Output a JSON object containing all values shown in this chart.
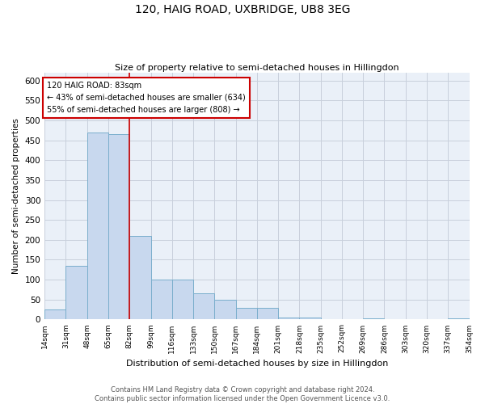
{
  "title": "120, HAIG ROAD, UXBRIDGE, UB8 3EG",
  "subtitle": "Size of property relative to semi-detached houses in Hillingdon",
  "xlabel": "Distribution of semi-detached houses by size in Hillingdon",
  "ylabel": "Number of semi-detached properties",
  "footnote1": "Contains HM Land Registry data © Crown copyright and database right 2024.",
  "footnote2": "Contains public sector information licensed under the Open Government Licence v3.0.",
  "property_label": "120 HAIG ROAD: 83sqm",
  "smaller_text": "← 43% of semi-detached houses are smaller (634)",
  "larger_text": "55% of semi-detached houses are larger (808) →",
  "property_sqm": 83,
  "bar_left_edges": [
    14,
    31,
    48,
    65,
    82,
    99,
    116,
    133,
    150,
    167,
    184,
    201,
    218,
    235,
    252,
    269,
    286,
    303,
    320,
    337
  ],
  "bar_heights": [
    25,
    135,
    470,
    465,
    210,
    100,
    100,
    65,
    50,
    30,
    30,
    5,
    5,
    0,
    0,
    3,
    0,
    0,
    0,
    3
  ],
  "bin_width": 17,
  "bar_color": "#c8d8ee",
  "bar_edge_color": "#7aaecc",
  "red_line_x": 82,
  "red_line_color": "#cc0000",
  "annotation_box_color": "#cc0000",
  "ylim": [
    0,
    620
  ],
  "yticks": [
    0,
    50,
    100,
    150,
    200,
    250,
    300,
    350,
    400,
    450,
    500,
    550,
    600
  ],
  "xlim": [
    14,
    354
  ],
  "xtick_labels": [
    "14sqm",
    "31sqm",
    "48sqm",
    "65sqm",
    "82sqm",
    "99sqm",
    "116sqm",
    "133sqm",
    "150sqm",
    "167sqm",
    "184sqm",
    "201sqm",
    "218sqm",
    "235sqm",
    "252sqm",
    "269sqm",
    "286sqm",
    "303sqm",
    "320sqm",
    "337sqm",
    "354sqm"
  ],
  "xtick_positions": [
    14,
    31,
    48,
    65,
    82,
    99,
    116,
    133,
    150,
    167,
    184,
    201,
    218,
    235,
    252,
    269,
    286,
    303,
    320,
    337,
    354
  ],
  "grid_color": "#c8d0dc",
  "background_color": "#eaf0f8"
}
